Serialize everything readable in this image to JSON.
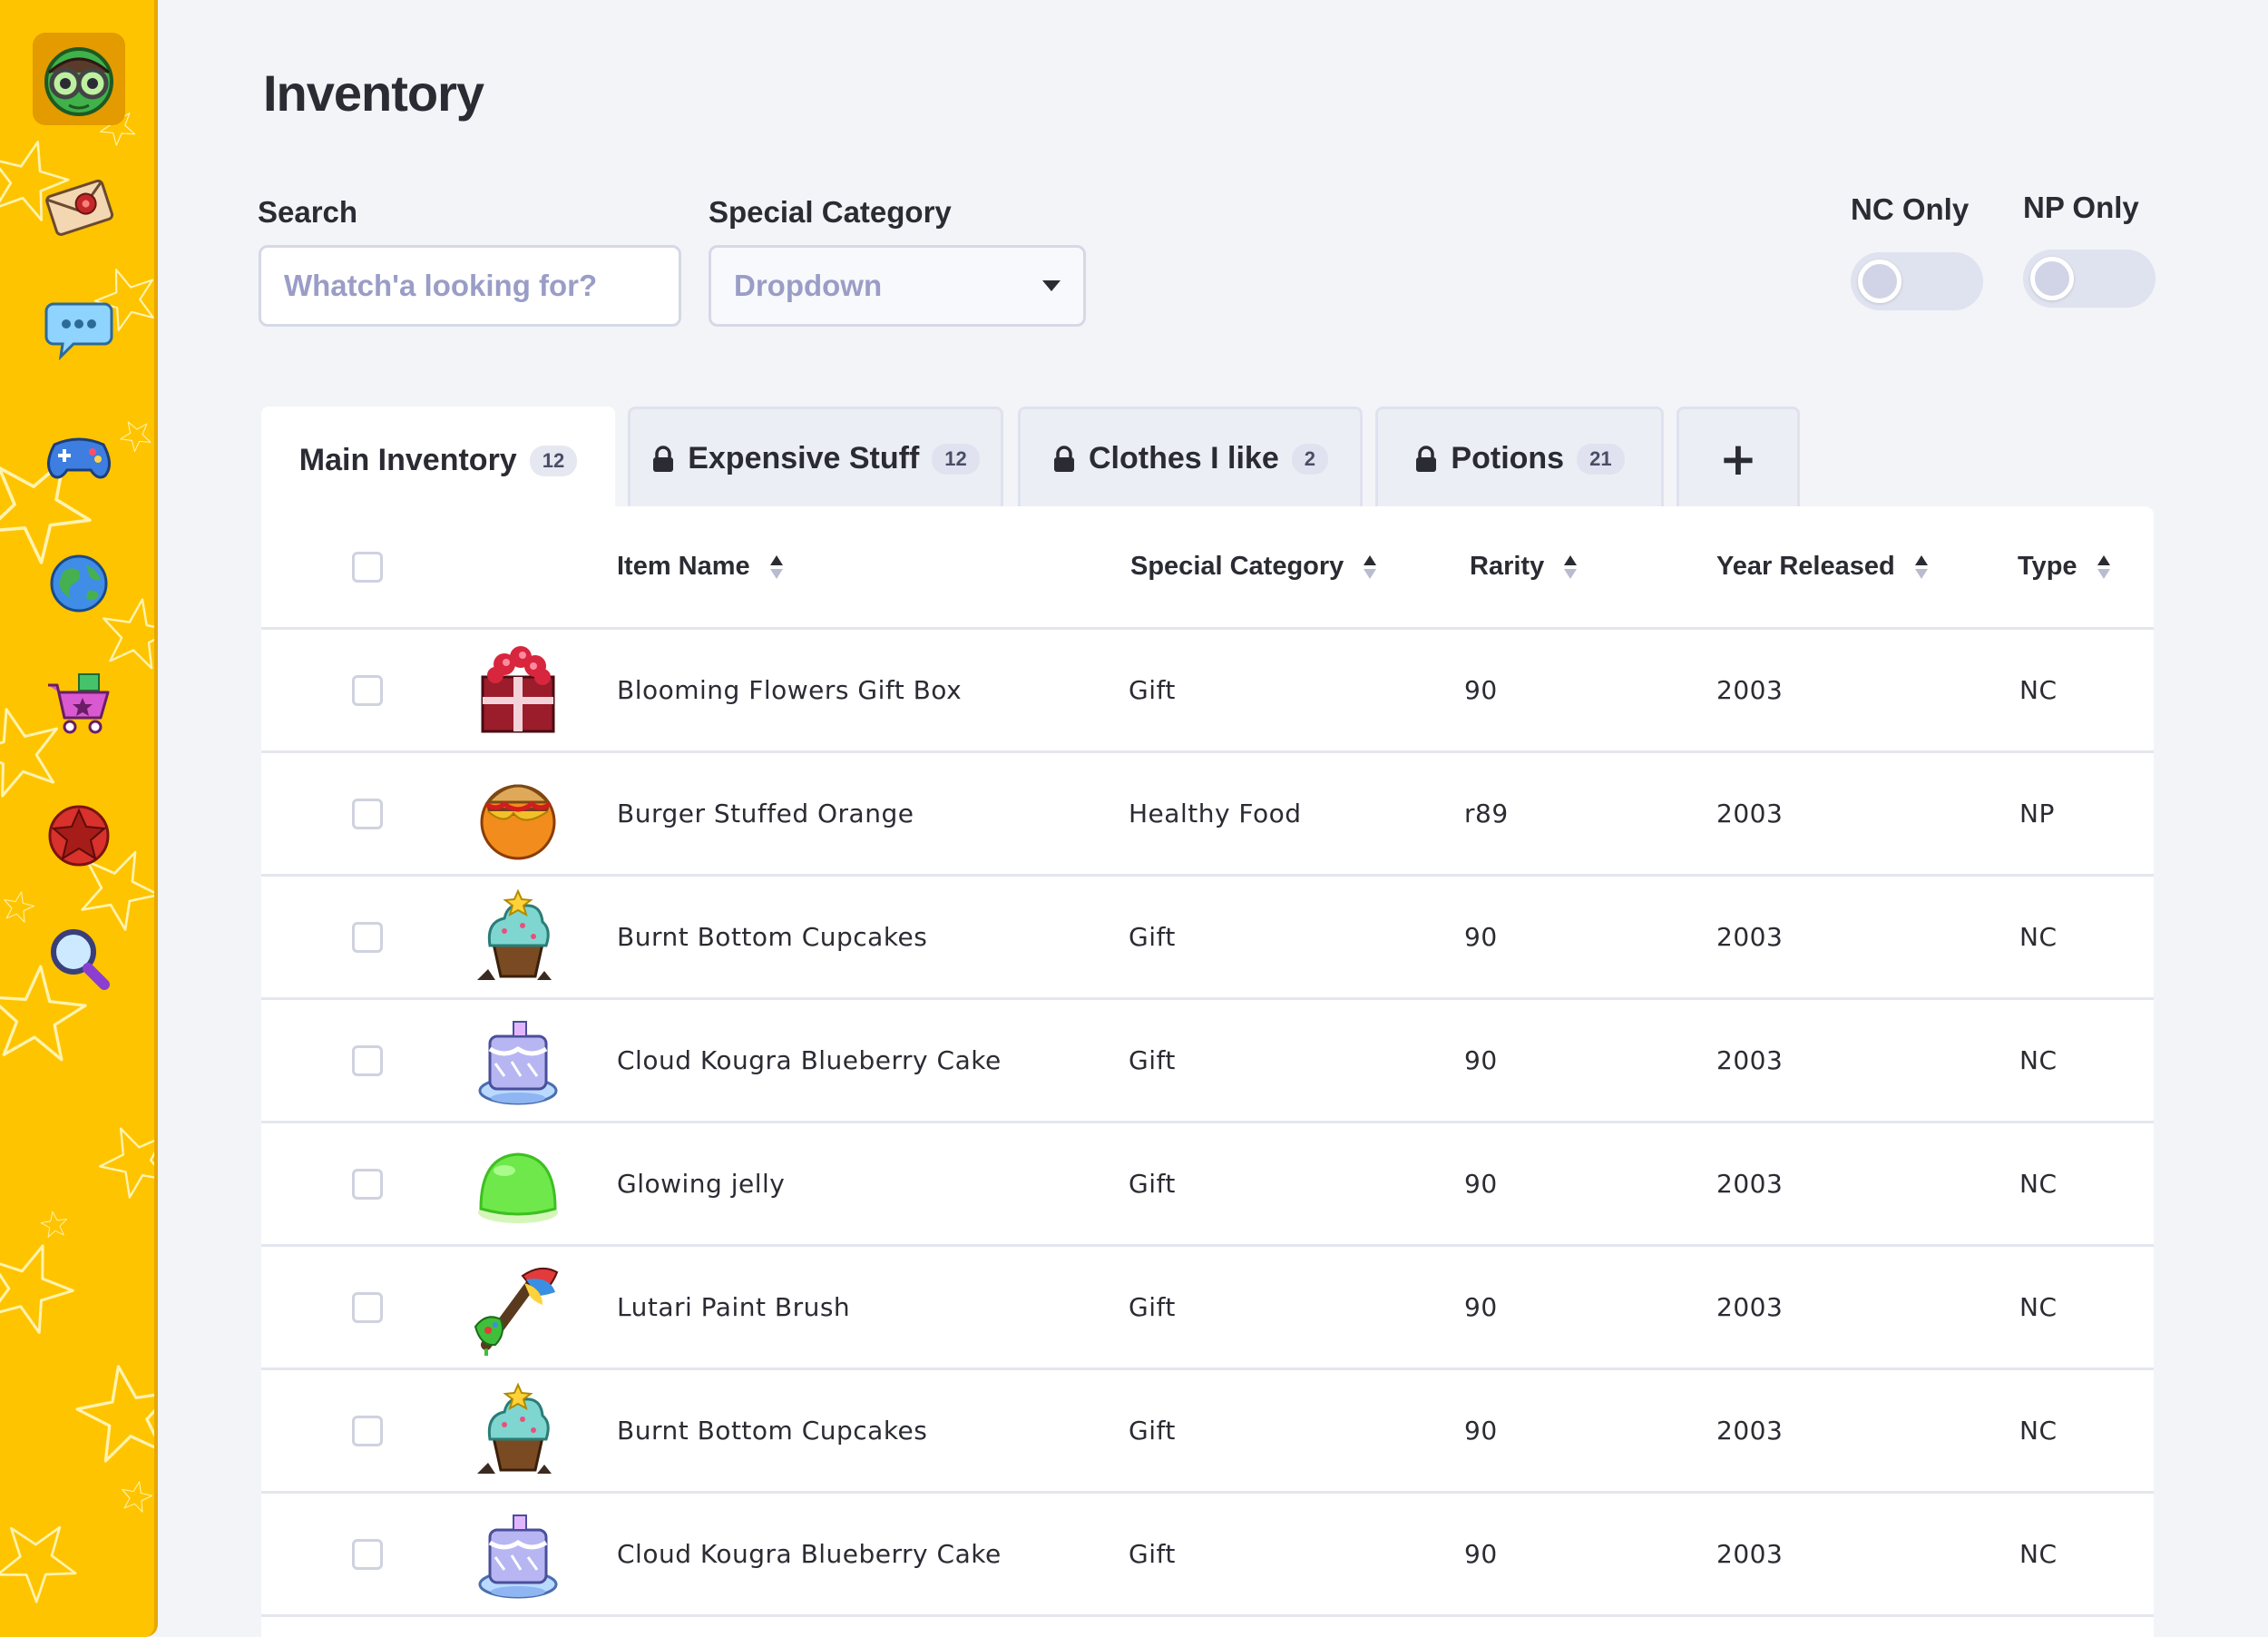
{
  "page": {
    "title": "Inventory"
  },
  "filters": {
    "search_label": "Search",
    "search_placeholder": "Whatch'a looking for?",
    "category_label": "Special Category",
    "category_value": "Dropdown",
    "nc_only_label": "NC Only",
    "np_only_label": "NP Only",
    "nc_only_on": false,
    "np_only_on": false
  },
  "sidebar": {
    "items": [
      {
        "icon": "avatar-goggles-icon",
        "active": true
      },
      {
        "icon": "mail-envelope-icon",
        "active": false
      },
      {
        "icon": "chat-bubble-icon",
        "active": false
      },
      {
        "icon": "gamepad-icon",
        "active": false
      },
      {
        "icon": "globe-icon",
        "active": false
      },
      {
        "icon": "shopping-cart-icon",
        "active": false
      },
      {
        "icon": "star-badge-icon",
        "active": false
      },
      {
        "icon": "magnifier-icon",
        "active": false
      }
    ]
  },
  "tabs": [
    {
      "label": "Main Inventory",
      "count": "12",
      "locked": false,
      "active": true
    },
    {
      "label": "Expensive Stuff",
      "count": "12",
      "locked": true,
      "active": false
    },
    {
      "label": "Clothes I like",
      "count": "2",
      "locked": true,
      "active": false
    },
    {
      "label": "Potions",
      "count": "21",
      "locked": true,
      "active": false
    }
  ],
  "add_tab": "+",
  "table": {
    "columns": {
      "name": "Item Name",
      "category": "Special Category",
      "rarity": "Rarity",
      "year": "Year Released",
      "type": "Type"
    },
    "rows": [
      {
        "thumb": "gift-box",
        "name": "Blooming Flowers Gift Box",
        "category": "Gift",
        "rarity": "90",
        "year": "2003",
        "type": "NC"
      },
      {
        "thumb": "burger-orange",
        "name": "Burger Stuffed Orange",
        "category": "Healthy Food",
        "rarity": "r89",
        "year": "2003",
        "type": "NP"
      },
      {
        "thumb": "cupcake",
        "name": "Burnt Bottom Cupcakes",
        "category": "Gift",
        "rarity": "90",
        "year": "2003",
        "type": "NC"
      },
      {
        "thumb": "blue-cake",
        "name": "Cloud Kougra Blueberry Cake",
        "category": "Gift",
        "rarity": "90",
        "year": "2003",
        "type": "NC"
      },
      {
        "thumb": "jelly",
        "name": "Glowing jelly",
        "category": "Gift",
        "rarity": "90",
        "year": "2003",
        "type": "NC"
      },
      {
        "thumb": "paint-brush",
        "name": "Lutari Paint Brush",
        "category": "Gift",
        "rarity": "90",
        "year": "2003",
        "type": "NC"
      },
      {
        "thumb": "cupcake",
        "name": "Burnt Bottom Cupcakes",
        "category": "Gift",
        "rarity": "90",
        "year": "2003",
        "type": "NC"
      },
      {
        "thumb": "blue-cake",
        "name": "Cloud Kougra Blueberry Cake",
        "category": "Gift",
        "rarity": "90",
        "year": "2003",
        "type": "NC"
      }
    ]
  }
}
